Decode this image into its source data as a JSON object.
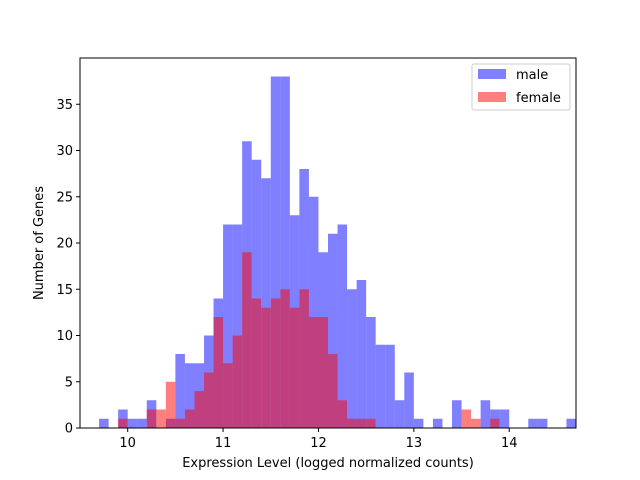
{
  "chart_data": {
    "type": "histogram",
    "title": "",
    "xlabel": "Expression Level (logged normalized counts)",
    "ylabel": "Number of Genes",
    "xlim": [
      9.5,
      14.7
    ],
    "ylim": [
      0,
      40
    ],
    "xticks": [
      10,
      11,
      12,
      13,
      14
    ],
    "yticks": [
      0,
      5,
      10,
      15,
      20,
      25,
      30,
      35
    ],
    "grid": false,
    "legend_position": "top-right",
    "series": [
      {
        "name": "male",
        "color": "#0000ff",
        "alpha": 0.5,
        "bin_start": 9.7,
        "bin_width": 0.1,
        "counts": [
          1,
          0,
          2,
          1,
          1,
          3,
          0,
          1,
          8,
          7,
          7,
          10,
          14,
          22,
          22,
          31,
          29,
          27,
          38,
          38,
          23,
          28,
          25,
          19,
          21,
          22,
          15,
          16,
          12,
          9,
          9,
          3,
          6,
          1,
          0,
          1,
          0,
          3,
          0,
          0,
          3,
          2,
          2,
          0,
          0,
          1,
          1,
          0,
          0,
          1
        ]
      },
      {
        "name": "female",
        "color": "#ff0000",
        "alpha": 0.5,
        "bin_start": 9.7,
        "bin_width": 0.1,
        "counts": [
          0,
          0,
          1,
          0,
          0,
          2,
          2,
          5,
          1,
          2,
          4,
          6,
          12,
          7,
          10,
          19,
          14,
          13,
          14,
          15,
          13,
          15,
          12,
          12,
          8,
          3,
          1,
          1,
          1,
          0,
          0,
          0,
          0,
          0,
          0,
          0,
          0,
          0,
          2,
          1,
          0,
          1,
          0,
          0,
          0,
          0,
          0,
          0,
          0,
          0
        ]
      }
    ]
  }
}
